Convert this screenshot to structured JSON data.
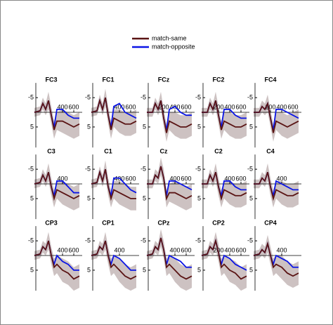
{
  "legend": [
    {
      "name": "match-same",
      "color": "#5a1414"
    },
    {
      "name": "match-opposite",
      "color": "#0a14e6"
    }
  ],
  "chart_data": [
    {
      "type": "line",
      "title": "FC3",
      "x": [
        -100,
        0,
        50,
        100,
        150,
        200,
        250,
        300,
        400,
        500,
        600,
        700
      ],
      "xlim": [
        -150,
        750
      ],
      "xticks": [
        400,
        600
      ],
      "ylim": [
        -10,
        12
      ],
      "yticks": [
        -5,
        5
      ],
      "y_inverted": true,
      "series": [
        {
          "values": [
            0,
            -0.5,
            -3,
            -1,
            -4,
            1,
            6,
            3,
            3,
            4,
            5,
            4
          ]
        },
        {
          "values": [
            0,
            -0.5,
            -3,
            -1,
            -4,
            1,
            5,
            -1,
            -1,
            1,
            2,
            2
          ]
        }
      ],
      "band": [
        1.5,
        1.5,
        2,
        2,
        3,
        3,
        3,
        3,
        4,
        4,
        4,
        4
      ]
    },
    {
      "type": "line",
      "title": "FC1",
      "x": [
        -100,
        0,
        50,
        100,
        150,
        200,
        250,
        300,
        400,
        500,
        600,
        700
      ],
      "xlim": [
        -150,
        750
      ],
      "xticks": [
        400,
        600
      ],
      "ylim": [
        -10,
        12
      ],
      "yticks": [
        -5,
        5
      ],
      "y_inverted": true,
      "series": [
        {
          "values": [
            0,
            -0.5,
            -4,
            -1,
            -5,
            1,
            6,
            2,
            3,
            4,
            4,
            3
          ]
        },
        {
          "values": [
            0,
            -0.5,
            -4,
            -1,
            -5,
            1,
            5,
            -2,
            -3,
            0,
            1,
            2
          ]
        }
      ],
      "band": [
        1.5,
        1.5,
        2,
        2,
        3,
        3,
        3,
        3,
        4,
        4,
        4,
        4
      ]
    },
    {
      "type": "line",
      "title": "FCz",
      "x": [
        -100,
        0,
        50,
        100,
        150,
        200,
        250,
        300,
        400,
        500,
        600,
        700
      ],
      "xlim": [
        -150,
        750
      ],
      "xticks": [
        200,
        400,
        600
      ],
      "ylim": [
        -10,
        12
      ],
      "yticks": [
        -5,
        5
      ],
      "y_inverted": true,
      "series": [
        {
          "values": [
            0,
            0,
            -3,
            -1,
            -4,
            2,
            7,
            3,
            4,
            5,
            5,
            4
          ]
        },
        {
          "values": [
            0,
            0,
            -3,
            -1,
            -4,
            2,
            6,
            -1,
            -2,
            0,
            1,
            1
          ]
        }
      ],
      "band": [
        1.5,
        1.5,
        2,
        2,
        3,
        3,
        3,
        3,
        4,
        4,
        4,
        4
      ]
    },
    {
      "type": "line",
      "title": "FC2",
      "x": [
        -100,
        0,
        50,
        100,
        150,
        200,
        250,
        300,
        400,
        500,
        600,
        700
      ],
      "xlim": [
        -150,
        750
      ],
      "xticks": [
        200,
        400,
        600
      ],
      "ylim": [
        -10,
        12
      ],
      "yticks": [
        -5,
        5
      ],
      "y_inverted": true,
      "series": [
        {
          "values": [
            0,
            0,
            -3,
            -1,
            -4,
            1,
            6,
            3,
            4,
            5,
            5,
            4
          ]
        },
        {
          "values": [
            0,
            0,
            -3,
            -1,
            -4,
            1,
            5,
            -1,
            -1,
            1,
            2,
            2
          ]
        }
      ],
      "band": [
        1.5,
        1.5,
        2,
        2,
        3,
        3,
        3,
        3,
        4,
        4,
        4,
        4
      ]
    },
    {
      "type": "line",
      "title": "FC4",
      "x": [
        -100,
        0,
        50,
        100,
        150,
        200,
        250,
        300,
        400,
        500,
        600,
        700
      ],
      "xlim": [
        -150,
        750
      ],
      "xticks": [
        200,
        400,
        600
      ],
      "ylim": [
        -10,
        12
      ],
      "yticks": [
        -5,
        5
      ],
      "y_inverted": true,
      "series": [
        {
          "values": [
            0,
            0,
            -2,
            -1,
            -3,
            2,
            7,
            3,
            4,
            5,
            4,
            3
          ]
        },
        {
          "values": [
            0,
            0,
            -2,
            -1,
            -3,
            2,
            6,
            -1,
            -1,
            0,
            1,
            2
          ]
        }
      ],
      "band": [
        1.5,
        1.5,
        2,
        2,
        3,
        3,
        3,
        3,
        4,
        4,
        4,
        4
      ]
    },
    {
      "type": "line",
      "title": "C3",
      "x": [
        -100,
        0,
        50,
        100,
        150,
        200,
        250,
        300,
        400,
        500,
        600,
        700
      ],
      "xlim": [
        -150,
        750
      ],
      "xticks": [
        400
      ],
      "ylim": [
        -10,
        12
      ],
      "yticks": [
        -5,
        5
      ],
      "y_inverted": true,
      "series": [
        {
          "values": [
            0,
            -0.5,
            -3,
            -1,
            -4,
            1,
            5,
            2,
            3,
            4,
            5,
            4
          ]
        },
        {
          "values": [
            0,
            -0.5,
            -3,
            -1,
            -4,
            1,
            4,
            -1,
            -1,
            1,
            3,
            3
          ]
        }
      ],
      "band": [
        1.5,
        1.5,
        2,
        2,
        3,
        3,
        3,
        3,
        4,
        4,
        4,
        4
      ]
    },
    {
      "type": "line",
      "title": "C1",
      "x": [
        -100,
        0,
        50,
        100,
        150,
        200,
        250,
        300,
        400,
        500,
        600,
        700
      ],
      "xlim": [
        -150,
        750
      ],
      "xticks": [
        400,
        600
      ],
      "ylim": [
        -10,
        12
      ],
      "yticks": [
        -5,
        5
      ],
      "y_inverted": true,
      "series": [
        {
          "values": [
            0,
            -0.5,
            -4,
            -1,
            -5,
            1,
            5,
            2,
            3,
            4,
            5,
            5
          ]
        },
        {
          "values": [
            0,
            -0.5,
            -4,
            -1,
            -5,
            1,
            4,
            -2,
            -2,
            0,
            2,
            3
          ]
        }
      ],
      "band": [
        1.5,
        1.5,
        2,
        2,
        3,
        3,
        3,
        3,
        4,
        4,
        4,
        4
      ]
    },
    {
      "type": "line",
      "title": "Cz",
      "x": [
        -100,
        0,
        50,
        100,
        150,
        200,
        250,
        300,
        400,
        500,
        600,
        700
      ],
      "xlim": [
        -150,
        750
      ],
      "xticks": [
        400,
        600
      ],
      "ylim": [
        -10,
        12
      ],
      "yticks": [
        -5,
        5
      ],
      "y_inverted": true,
      "series": [
        {
          "values": [
            0,
            0,
            -3,
            -2,
            -6,
            -2,
            5,
            3,
            3,
            4,
            5,
            4
          ]
        },
        {
          "values": [
            0,
            0,
            -3,
            -2,
            -6,
            -2,
            4,
            -1,
            -1,
            0,
            1,
            2
          ]
        }
      ],
      "band": [
        1.5,
        1.5,
        2,
        2,
        3,
        3,
        3,
        3,
        4,
        4,
        4,
        4
      ]
    },
    {
      "type": "line",
      "title": "C2",
      "x": [
        -100,
        0,
        50,
        100,
        150,
        200,
        250,
        300,
        400,
        500,
        600,
        700
      ],
      "xlim": [
        -150,
        750
      ],
      "xticks": [
        400,
        600
      ],
      "ylim": [
        -10,
        12
      ],
      "yticks": [
        -5,
        5
      ],
      "y_inverted": true,
      "series": [
        {
          "values": [
            0,
            0,
            -3,
            -1,
            -4,
            1,
            5,
            2,
            3,
            4,
            4,
            3
          ]
        },
        {
          "values": [
            0,
            0,
            -3,
            -1,
            -4,
            1,
            4,
            -1,
            -1,
            1,
            2,
            2
          ]
        }
      ],
      "band": [
        1.5,
        1.5,
        2,
        2,
        3,
        3,
        3,
        3,
        4,
        4,
        4,
        4
      ]
    },
    {
      "type": "line",
      "title": "C4",
      "x": [
        -100,
        0,
        50,
        100,
        150,
        200,
        250,
        300,
        400,
        500,
        600,
        700
      ],
      "xlim": [
        -150,
        750
      ],
      "xticks": [
        400
      ],
      "ylim": [
        -10,
        12
      ],
      "yticks": [
        -5,
        5
      ],
      "y_inverted": true,
      "series": [
        {
          "values": [
            0,
            0,
            -2,
            -1,
            -4,
            1,
            5,
            2,
            3,
            4,
            4,
            3
          ]
        },
        {
          "values": [
            0,
            0,
            -2,
            -1,
            -4,
            1,
            4,
            -1,
            0,
            1,
            2,
            2
          ]
        }
      ],
      "band": [
        1.5,
        1.5,
        2,
        2,
        3,
        3,
        3,
        3,
        4,
        4,
        4,
        4
      ]
    },
    {
      "type": "line",
      "title": "CP3",
      "x": [
        -100,
        0,
        50,
        100,
        150,
        200,
        250,
        300,
        400,
        500,
        600,
        700
      ],
      "xlim": [
        -150,
        750
      ],
      "xticks": [
        400,
        600
      ],
      "ylim": [
        -10,
        12
      ],
      "yticks": [
        -5,
        5
      ],
      "y_inverted": true,
      "series": [
        {
          "values": [
            0,
            -0.5,
            -3,
            -2,
            -5,
            0,
            4,
            3,
            5,
            6,
            8,
            7
          ]
        },
        {
          "values": [
            0,
            -0.5,
            -3,
            -2,
            -5,
            0,
            3,
            0,
            2,
            3,
            5,
            5
          ]
        }
      ],
      "band": [
        1.5,
        1.5,
        2,
        2,
        3,
        3,
        3,
        3,
        4,
        4,
        4,
        4
      ]
    },
    {
      "type": "line",
      "title": "CP1",
      "x": [
        -100,
        0,
        50,
        100,
        150,
        200,
        250,
        300,
        400,
        500,
        600,
        700
      ],
      "xlim": [
        -150,
        750
      ],
      "xticks": [
        400
      ],
      "ylim": [
        -10,
        12
      ],
      "yticks": [
        -5,
        5
      ],
      "y_inverted": true,
      "series": [
        {
          "values": [
            0,
            -0.5,
            -3,
            -2,
            -5,
            0,
            4,
            3,
            5,
            7,
            8,
            7
          ]
        },
        {
          "values": [
            0,
            -0.5,
            -3,
            -2,
            -5,
            0,
            3,
            0,
            1,
            3,
            5,
            5
          ]
        }
      ],
      "band": [
        1.5,
        1.5,
        2,
        2,
        3,
        3,
        3,
        3,
        4,
        4,
        4,
        4
      ]
    },
    {
      "type": "line",
      "title": "CPz",
      "x": [
        -100,
        0,
        50,
        100,
        150,
        200,
        250,
        300,
        400,
        500,
        600,
        700
      ],
      "xlim": [
        -150,
        750
      ],
      "xticks": [
        400,
        600
      ],
      "ylim": [
        -10,
        12
      ],
      "yticks": [
        -5,
        5
      ],
      "y_inverted": true,
      "series": [
        {
          "values": [
            0,
            -0.5,
            -3,
            -2,
            -6,
            -2,
            4,
            3,
            5,
            7,
            8,
            7
          ]
        },
        {
          "values": [
            0,
            -0.5,
            -3,
            -2,
            -6,
            -2,
            3,
            0,
            1,
            2,
            4,
            4
          ]
        }
      ],
      "band": [
        1.5,
        1.5,
        2,
        2,
        3,
        3,
        3,
        3,
        4,
        4,
        4,
        4
      ]
    },
    {
      "type": "line",
      "title": "CP2",
      "x": [
        -100,
        0,
        50,
        100,
        150,
        200,
        250,
        300,
        400,
        500,
        600,
        700
      ],
      "xlim": [
        -150,
        750
      ],
      "xticks": [
        200,
        400,
        600
      ],
      "ylim": [
        -10,
        12
      ],
      "yticks": [
        -5,
        5
      ],
      "y_inverted": true,
      "series": [
        {
          "values": [
            0,
            -0.5,
            -3,
            -2,
            -5,
            -1,
            4,
            3,
            5,
            6,
            8,
            7
          ]
        },
        {
          "values": [
            0,
            -0.5,
            -3,
            -2,
            -5,
            -1,
            3,
            0,
            1,
            3,
            4,
            5
          ]
        }
      ],
      "band": [
        1.5,
        1.5,
        2,
        2,
        3,
        3,
        3,
        3,
        4,
        4,
        4,
        4
      ]
    },
    {
      "type": "line",
      "title": "CP4",
      "x": [
        -100,
        0,
        50,
        100,
        150,
        200,
        250,
        300,
        400,
        500,
        600,
        700
      ],
      "xlim": [
        -150,
        750
      ],
      "xticks": [
        400
      ],
      "ylim": [
        -10,
        12
      ],
      "yticks": [
        -5,
        5
      ],
      "y_inverted": true,
      "series": [
        {
          "values": [
            0,
            -0.5,
            -2,
            -1,
            -4,
            0,
            4,
            3,
            4,
            6,
            7,
            6
          ]
        },
        {
          "values": [
            0,
            -0.5,
            -2,
            -1,
            -4,
            0,
            3,
            0,
            1,
            2,
            4,
            4
          ]
        }
      ],
      "band": [
        1.5,
        1.5,
        2,
        2,
        3,
        3,
        3,
        3,
        4,
        4,
        4,
        4
      ]
    }
  ]
}
